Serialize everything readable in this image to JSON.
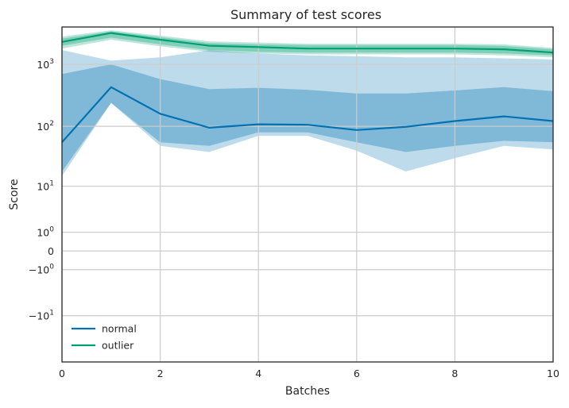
{
  "chart_data": {
    "type": "line",
    "title": "Summary of test scores",
    "xlabel": "Batches",
    "ylabel": "Score",
    "x_scale": "linear",
    "y_scale": "symlog",
    "xlim": [
      0,
      10
    ],
    "ylim": [
      -60,
      4000
    ],
    "grid": true,
    "legend_position": "lower-left",
    "x": [
      0,
      1,
      2,
      3,
      4,
      5,
      6,
      7,
      8,
      9,
      10
    ],
    "x_ticks": [
      {
        "value": 0,
        "label": "0"
      },
      {
        "value": 2,
        "label": "2"
      },
      {
        "value": 4,
        "label": "4"
      },
      {
        "value": 6,
        "label": "6"
      },
      {
        "value": 8,
        "label": "8"
      },
      {
        "value": 10,
        "label": "10"
      }
    ],
    "y_ticks": [
      {
        "value": 1000,
        "base": "10",
        "exp": "3"
      },
      {
        "value": 100,
        "base": "10",
        "exp": "2"
      },
      {
        "value": 10,
        "base": "10",
        "exp": "1"
      },
      {
        "value": 1,
        "base": "10",
        "exp": "0"
      },
      {
        "value": 0,
        "base": "0",
        "exp": ""
      },
      {
        "value": -1,
        "base": "−10",
        "exp": "0"
      },
      {
        "value": -10,
        "base": "−10",
        "exp": "1"
      }
    ],
    "series": [
      {
        "name": "normal",
        "color": "#0072b2",
        "values": [
          55,
          430,
          160,
          95,
          108,
          106,
          87,
          98,
          122,
          145,
          122
        ],
        "band_inner": {
          "lower": [
            18,
            240,
            55,
            48,
            80,
            80,
            55,
            38,
            48,
            58,
            55
          ],
          "upper": [
            700,
            1000,
            580,
            400,
            420,
            390,
            340,
            340,
            380,
            430,
            370
          ]
        },
        "band_outer": {
          "lower": [
            15,
            240,
            48,
            38,
            70,
            70,
            40,
            18,
            30,
            48,
            42
          ],
          "upper": [
            1700,
            1150,
            1300,
            1700,
            1500,
            1400,
            1350,
            1300,
            1300,
            1250,
            1200
          ]
        }
      },
      {
        "name": "outlier",
        "color": "#009e73",
        "values": [
          2300,
          3200,
          2500,
          2000,
          1900,
          1800,
          1800,
          1800,
          1800,
          1750,
          1550
        ],
        "band_inner": {
          "lower": [
            2000,
            2700,
            2100,
            1700,
            1600,
            1550,
            1550,
            1550,
            1550,
            1500,
            1400
          ],
          "upper": [
            2600,
            3400,
            2750,
            2200,
            2100,
            2050,
            2050,
            2050,
            2050,
            1980,
            1750
          ]
        },
        "band_outer": {
          "lower": [
            1800,
            2500,
            1950,
            1600,
            1500,
            1450,
            1450,
            1450,
            1450,
            1400,
            1300
          ],
          "upper": [
            2800,
            3550,
            2900,
            2350,
            2250,
            2150,
            2150,
            2150,
            2150,
            2100,
            1850
          ]
        }
      }
    ]
  }
}
